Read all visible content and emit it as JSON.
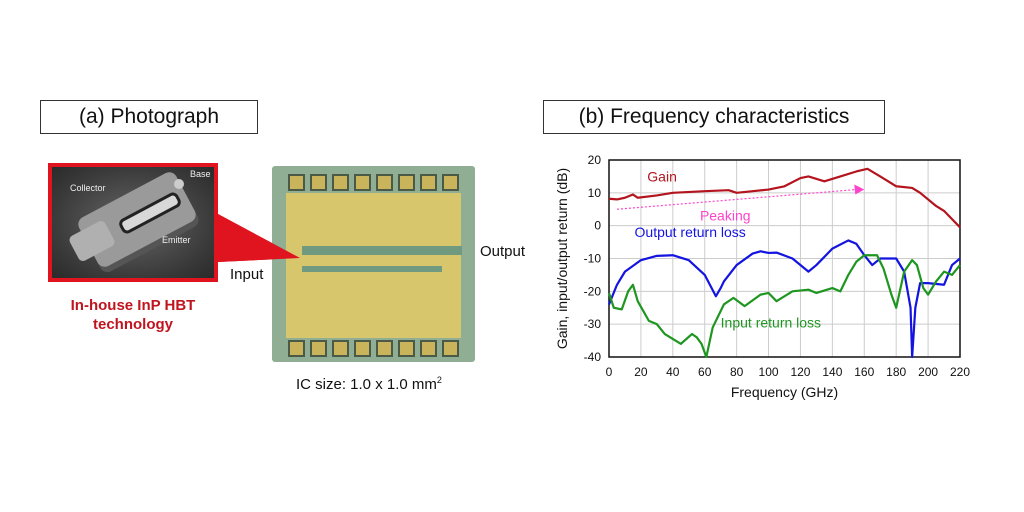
{
  "panel_a": {
    "title": "(a) Photograph",
    "sem_labels": {
      "base": "Base",
      "collector": "Collector",
      "emitter": "Emitter"
    },
    "sem_caption_line1": "In-house InP HBT",
    "sem_caption_line2": "technology",
    "input_label": "Input",
    "output_label": "Output",
    "ic_size": "IC size: 1.0 x 1.0 mm",
    "ic_size_sup": "2",
    "accent_color": "#e0141e"
  },
  "panel_b": {
    "title": "(b) Frequency characteristics"
  },
  "chart_data": {
    "type": "line",
    "xlabel": "Frequency (GHz)",
    "ylabel": "Gain, input/output return (dB)",
    "xlim": [
      0,
      220
    ],
    "ylim": [
      -40,
      20
    ],
    "xticks": [
      0,
      20,
      40,
      60,
      80,
      100,
      120,
      140,
      160,
      180,
      200,
      220
    ],
    "yticks": [
      20,
      10,
      0,
      -10,
      -20,
      -30,
      -40
    ],
    "grid": true,
    "annotation": {
      "text": "Peaking",
      "color": "#ff44cc",
      "from": [
        5,
        5
      ],
      "to": [
        160,
        11
      ]
    },
    "series": [
      {
        "name": "Gain",
        "color": "#b3141e",
        "x": [
          0,
          5,
          10,
          15,
          18,
          30,
          40,
          60,
          75,
          80,
          90,
          100,
          110,
          120,
          125,
          135,
          145,
          155,
          162,
          170,
          180,
          190,
          195,
          205,
          210,
          215,
          220
        ],
        "y": [
          8.2,
          8,
          8.5,
          9.5,
          8.5,
          9.2,
          10,
          10.5,
          10.8,
          10,
          10.5,
          11,
          12,
          14.5,
          15,
          13.5,
          15,
          16.5,
          17.3,
          15,
          12,
          11.5,
          10,
          6,
          4.5,
          2,
          -0.5
        ]
      },
      {
        "name": "Output return loss",
        "color": "#1414e0",
        "x": [
          0,
          5,
          10,
          20,
          30,
          40,
          50,
          60,
          67,
          70,
          72,
          80,
          90,
          95,
          100,
          105,
          115,
          125,
          130,
          140,
          150,
          155,
          160,
          165,
          170,
          180,
          185,
          189,
          190,
          192,
          195,
          200,
          210,
          215,
          220
        ],
        "y": [
          -24,
          -18,
          -14,
          -10.5,
          -9.2,
          -9,
          -10.5,
          -15,
          -21.5,
          -19,
          -17,
          -12,
          -8.5,
          -7.8,
          -8.3,
          -8.2,
          -10,
          -14,
          -12,
          -7,
          -4.5,
          -5.5,
          -9,
          -12,
          -10,
          -10,
          -14,
          -25,
          -40,
          -25,
          -17.5,
          -17.5,
          -18,
          -12,
          -10
        ]
      },
      {
        "name": "Input return loss",
        "color": "#1e9620",
        "x": [
          0,
          3,
          8,
          12,
          15,
          18,
          25,
          30,
          35,
          45,
          52,
          55,
          58,
          61,
          65,
          72,
          78,
          85,
          95,
          100,
          105,
          115,
          125,
          130,
          140,
          145,
          150,
          155,
          160,
          168,
          172,
          177,
          180,
          185,
          190,
          193,
          197,
          200,
          205,
          210,
          215,
          220
        ],
        "y": [
          -20.5,
          -25,
          -25.5,
          -20,
          -18,
          -23,
          -29,
          -30,
          -33,
          -36,
          -33,
          -34,
          -36,
          -40,
          -31,
          -24,
          -22,
          -24.5,
          -21,
          -20.5,
          -23,
          -20,
          -19.5,
          -20.5,
          -19,
          -20,
          -15,
          -11,
          -9,
          -9,
          -13,
          -21,
          -25,
          -14,
          -10.5,
          -12,
          -19,
          -21,
          -17,
          -14,
          -15,
          -12
        ]
      }
    ]
  }
}
